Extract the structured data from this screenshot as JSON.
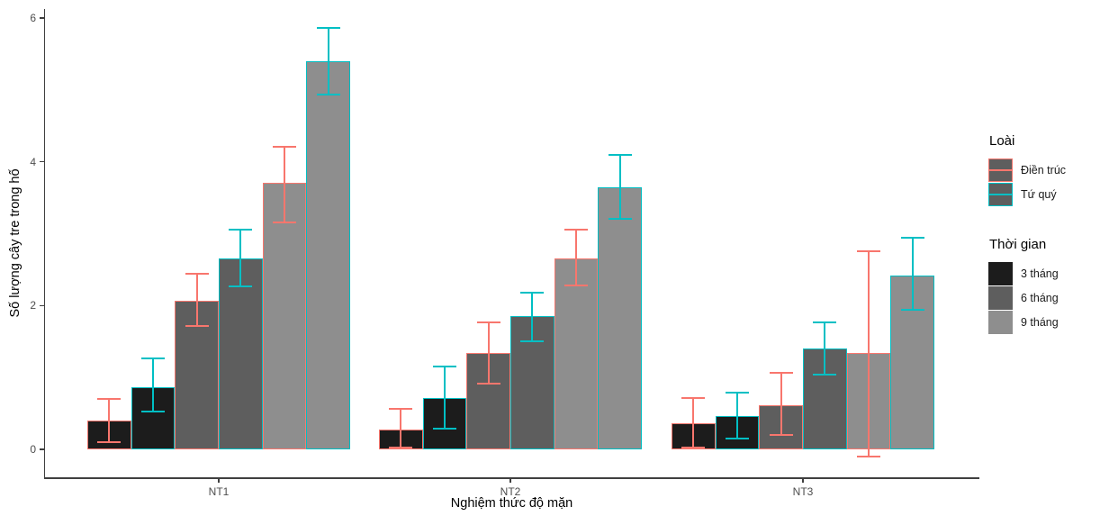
{
  "chart_data": {
    "type": "bar",
    "title": "",
    "xlabel": "Nghiệm thức độ mặn",
    "ylabel": "Số lượng cây tre trong hố",
    "categories": [
      "NT1",
      "NT2",
      "NT3"
    ],
    "yticks": [
      0,
      2,
      4,
      6
    ],
    "ylim": [
      0,
      6
    ],
    "grid": false,
    "legend_position": "right",
    "error_bars": true,
    "colors": {
      "species_dien_truc_outline": "#F8766D",
      "species_tu_quy_outline": "#00BFC4",
      "time_3_fill": "#1C1C1C",
      "time_6_fill": "#5E5E5E",
      "time_9_fill": "#8E8E8E",
      "axis_line": "#3F3F3F",
      "tick_label": "#4D4D4D"
    },
    "series": [
      {
        "name": "Điền trúc 3 tháng",
        "species": "Điền trúc",
        "time": "3 tháng",
        "fill": "#1C1C1C",
        "stroke": "#F8766D",
        "values": [
          0.4,
          0.28,
          0.36
        ],
        "err_low": [
          0.1,
          0.02,
          0.03
        ],
        "err_high": [
          0.7,
          0.56,
          0.71
        ]
      },
      {
        "name": "Tứ quý 3 tháng",
        "species": "Tứ quý",
        "time": "3 tháng",
        "fill": "#1C1C1C",
        "stroke": "#00BFC4",
        "values": [
          0.87,
          0.71,
          0.46
        ],
        "err_low": [
          0.52,
          0.29,
          0.15
        ],
        "err_high": [
          1.26,
          1.15,
          0.79
        ]
      },
      {
        "name": "Điền trúc 6 tháng",
        "species": "Điền trúc",
        "time": "6 tháng",
        "fill": "#5E5E5E",
        "stroke": "#F8766D",
        "values": [
          2.07,
          1.34,
          0.61
        ],
        "err_low": [
          1.72,
          0.92,
          0.2
        ],
        "err_high": [
          2.44,
          1.76,
          1.06
        ]
      },
      {
        "name": "Tứ quý 6 tháng",
        "species": "Tứ quý",
        "time": "6 tháng",
        "fill": "#5E5E5E",
        "stroke": "#00BFC4",
        "values": [
          2.66,
          1.85,
          1.4
        ],
        "err_low": [
          2.26,
          1.5,
          1.04
        ],
        "err_high": [
          3.05,
          2.18,
          1.77
        ]
      },
      {
        "name": "Điền trúc 9 tháng",
        "species": "Điền trúc",
        "time": "9 tháng",
        "fill": "#8E8E8E",
        "stroke": "#F8766D",
        "values": [
          3.7,
          2.66,
          1.34
        ],
        "err_low": [
          3.16,
          2.28,
          -0.1
        ],
        "err_high": [
          4.21,
          3.06,
          2.76
        ]
      },
      {
        "name": "Tứ quý 9 tháng",
        "species": "Tứ quý",
        "time": "9 tháng",
        "fill": "#8E8E8E",
        "stroke": "#00BFC4",
        "values": [
          5.4,
          3.64,
          2.42
        ],
        "err_low": [
          4.93,
          3.2,
          1.94
        ],
        "err_high": [
          5.86,
          4.09,
          2.94
        ]
      }
    ],
    "legend": {
      "species": {
        "title": "Loài",
        "items": [
          {
            "label": "Điền trúc",
            "color": "#F8766D"
          },
          {
            "label": "Tứ quý",
            "color": "#00BFC4"
          }
        ]
      },
      "time": {
        "title": "Thời gian",
        "items": [
          {
            "label": "3 tháng",
            "color": "#1C1C1C"
          },
          {
            "label": "6 tháng",
            "color": "#5E5E5E"
          },
          {
            "label": "9 tháng",
            "color": "#8E8E8E"
          }
        ]
      }
    }
  }
}
